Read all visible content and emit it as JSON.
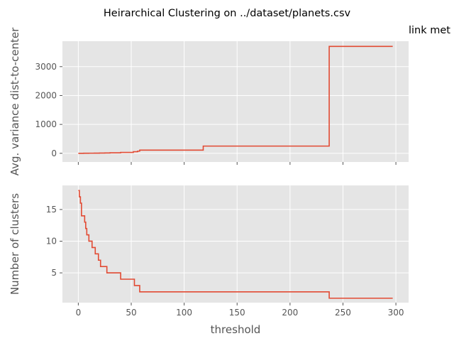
{
  "title": "Heirarchical Clustering on ../dataset/planets.csv",
  "side_text": "link met",
  "colors": {
    "panel": "#e5e5e5",
    "grid": "#ffffff",
    "line": "#e24a33",
    "text": "#555555"
  },
  "chart_data": [
    {
      "type": "line",
      "step": "post",
      "ylabel": "Avg. variance dist-to-center",
      "xlabel": "",
      "xlim": [
        -15,
        312
      ],
      "ylim": [
        -300,
        3880
      ],
      "xticks": [
        0,
        50,
        100,
        150,
        200,
        250,
        300
      ],
      "yticks": [
        0,
        1000,
        2000,
        3000
      ],
      "ytick_labels": [
        "0",
        "1000",
        "2000",
        "3000"
      ],
      "grid": true,
      "series": [
        {
          "x": [
            0,
            5,
            10,
            15,
            20,
            25,
            30,
            40,
            52,
            56,
            58,
            118,
            237,
            297
          ],
          "y": [
            0,
            2,
            4,
            6,
            9,
            12,
            18,
            30,
            55,
            75,
            110,
            250,
            3700,
            3700
          ]
        }
      ]
    },
    {
      "type": "line",
      "step": "post",
      "ylabel": "Number of clusters",
      "xlabel": "threshold",
      "xlim": [
        -15,
        312
      ],
      "ylim": [
        0.3,
        18.8
      ],
      "xticks": [
        0,
        50,
        100,
        150,
        200,
        250,
        300
      ],
      "xtick_labels": [
        "0",
        "50",
        "100",
        "150",
        "200",
        "250",
        "300"
      ],
      "yticks": [
        5,
        10,
        15
      ],
      "ytick_labels": [
        "5",
        "10",
        "15"
      ],
      "grid": true,
      "series": [
        {
          "x": [
            0,
            1,
            2,
            3,
            6,
            7,
            8,
            10,
            13,
            16,
            19,
            21,
            27,
            40,
            53,
            58,
            118,
            237,
            297
          ],
          "y": [
            18,
            17,
            16,
            14,
            13,
            12,
            11,
            10,
            9,
            8,
            7,
            6,
            5,
            4,
            3,
            2,
            2,
            1,
            1
          ]
        }
      ]
    }
  ]
}
